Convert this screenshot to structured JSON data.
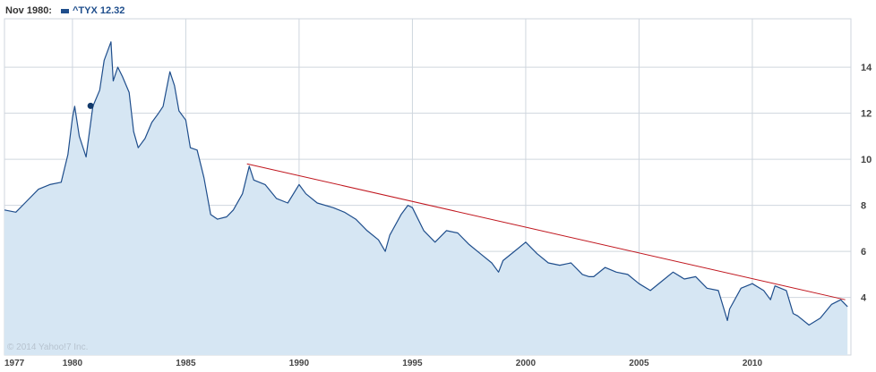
{
  "legend": {
    "date": "Nov 1980:",
    "series_label": "^TYX 12.32"
  },
  "copyright": "© 2014 Yahoo!7 Inc.",
  "colors": {
    "line": "#1f4e8c",
    "area": "#d6e6f3",
    "trendline": "#c0161e",
    "grid": "#cfd6de"
  },
  "chart_data": {
    "type": "area",
    "series": [
      {
        "name": "^TYX",
        "x": [
          1977.0,
          1977.5,
          1978.0,
          1978.5,
          1979.0,
          1979.5,
          1979.8,
          1980.0,
          1980.1,
          1980.3,
          1980.6,
          1980.9,
          1981.2,
          1981.4,
          1981.7,
          1981.8,
          1982.0,
          1982.2,
          1982.5,
          1982.7,
          1982.9,
          1983.2,
          1983.5,
          1983.8,
          1984.0,
          1984.3,
          1984.5,
          1984.7,
          1985.0,
          1985.2,
          1985.5,
          1985.8,
          1986.1,
          1986.4,
          1986.8,
          1987.1,
          1987.5,
          1987.8,
          1988.0,
          1988.5,
          1989.0,
          1989.5,
          1990.0,
          1990.3,
          1990.8,
          1991.5,
          1992.0,
          1992.5,
          1993.0,
          1993.5,
          1993.8,
          1994.0,
          1994.5,
          1994.8,
          1995.0,
          1995.5,
          1996.0,
          1996.5,
          1997.0,
          1997.5,
          1998.0,
          1998.5,
          1998.8,
          1999.0,
          1999.5,
          2000.0,
          2000.5,
          2001.0,
          2001.5,
          2002.0,
          2002.5,
          2002.8,
          2003.0,
          2003.5,
          2004.0,
          2004.5,
          2005.0,
          2005.5,
          2006.0,
          2006.5,
          2007.0,
          2007.5,
          2008.0,
          2008.5,
          2008.9,
          2009.0,
          2009.5,
          2010.0,
          2010.5,
          2010.8,
          2011.0,
          2011.5,
          2011.8,
          2012.0,
          2012.5,
          2013.0,
          2013.5,
          2013.9,
          2014.2
        ],
        "y": [
          7.8,
          7.7,
          8.2,
          8.7,
          8.9,
          9.0,
          10.2,
          11.8,
          12.3,
          11.0,
          10.1,
          12.3,
          13.0,
          14.3,
          15.1,
          13.4,
          14.0,
          13.6,
          12.9,
          11.2,
          10.5,
          10.9,
          11.6,
          12.0,
          12.3,
          13.8,
          13.2,
          12.1,
          11.7,
          10.5,
          10.4,
          9.2,
          7.6,
          7.4,
          7.5,
          7.8,
          8.5,
          9.7,
          9.1,
          8.9,
          8.3,
          8.1,
          8.9,
          8.5,
          8.1,
          7.9,
          7.7,
          7.4,
          6.9,
          6.5,
          6.0,
          6.7,
          7.6,
          8.0,
          7.9,
          6.9,
          6.4,
          6.9,
          6.8,
          6.3,
          5.9,
          5.5,
          5.1,
          5.6,
          6.0,
          6.4,
          5.9,
          5.5,
          5.4,
          5.5,
          5.0,
          4.9,
          4.9,
          5.3,
          5.1,
          5.0,
          4.6,
          4.3,
          4.7,
          5.1,
          4.8,
          4.9,
          4.4,
          4.3,
          3.0,
          3.5,
          4.4,
          4.6,
          4.3,
          3.9,
          4.5,
          4.3,
          3.3,
          3.2,
          2.8,
          3.1,
          3.7,
          3.9,
          3.6
        ]
      }
    ],
    "trendline": {
      "x": [
        1987.7,
        2014.1
      ],
      "y": [
        9.8,
        3.9
      ]
    },
    "xlim": [
      1977.0,
      2014.35
    ],
    "ylim": [
      1.5,
      16.1
    ],
    "x_ticks": [
      1977,
      1980,
      1985,
      1990,
      1995,
      2000,
      2005,
      2010
    ],
    "y_ticks": [
      4,
      6,
      8,
      10,
      12,
      14
    ],
    "marker": {
      "x": 1980.8,
      "y": 12.32
    },
    "axis_position": "right",
    "grid": true,
    "legend_position": "top-left"
  }
}
